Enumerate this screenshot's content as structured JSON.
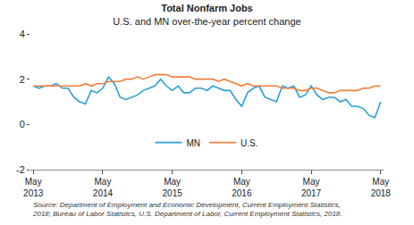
{
  "chart_data": {
    "type": "line",
    "title": "Total Nonfarm Jobs",
    "subtitle": "U.S. and MN over-the-year percent change",
    "source": [
      "Source: Department of Employment and Economic Development, Current Employment Statistics,",
      "2018; Bureau of Labor Statistics, U.S. Department of Labor, Current Employment Statistics, 2018."
    ],
    "categories": [
      "May 2013",
      null,
      null,
      null,
      null,
      null,
      null,
      null,
      null,
      null,
      null,
      null,
      "May 2014",
      null,
      null,
      null,
      null,
      null,
      null,
      null,
      null,
      null,
      null,
      null,
      "May 2015",
      null,
      null,
      null,
      null,
      null,
      null,
      null,
      null,
      null,
      null,
      null,
      "May 2016",
      null,
      null,
      null,
      null,
      null,
      null,
      null,
      null,
      null,
      null,
      null,
      "May 2017",
      null,
      null,
      null,
      null,
      null,
      null,
      null,
      null,
      null,
      null,
      null,
      "May 2018"
    ],
    "series": [
      {
        "name": "MN",
        "color": "#2a9fd6",
        "values": [
          1.7,
          1.6,
          1.7,
          1.7,
          1.8,
          1.6,
          1.6,
          1.2,
          1.0,
          0.9,
          1.5,
          1.4,
          1.6,
          2.1,
          1.8,
          1.2,
          1.1,
          1.2,
          1.3,
          1.5,
          1.6,
          1.7,
          2.0,
          1.7,
          1.5,
          1.7,
          1.4,
          1.4,
          1.6,
          1.6,
          1.5,
          1.7,
          1.6,
          1.5,
          1.5,
          1.1,
          0.8,
          1.4,
          1.6,
          1.7,
          1.2,
          1.1,
          1.0,
          1.7,
          1.6,
          1.7,
          1.2,
          1.3,
          1.7,
          1.3,
          1.1,
          1.2,
          1.2,
          1.0,
          1.1,
          0.8,
          0.8,
          0.7,
          0.4,
          0.3,
          1.0
        ]
      },
      {
        "name": "U.S.",
        "color": "#f07f3c",
        "values": [
          1.7,
          1.7,
          1.7,
          1.7,
          1.7,
          1.7,
          1.7,
          1.7,
          1.7,
          1.8,
          1.7,
          1.8,
          1.8,
          1.9,
          1.9,
          1.9,
          2.0,
          2.0,
          2.1,
          2.0,
          2.1,
          2.2,
          2.2,
          2.2,
          2.1,
          2.1,
          2.1,
          2.1,
          2.0,
          2.0,
          2.0,
          2.0,
          1.9,
          2.0,
          1.9,
          1.8,
          1.7,
          1.8,
          1.7,
          1.7,
          1.7,
          1.7,
          1.7,
          1.6,
          1.6,
          1.6,
          1.5,
          1.5,
          1.6,
          1.6,
          1.5,
          1.4,
          1.4,
          1.5,
          1.5,
          1.5,
          1.5,
          1.6,
          1.6,
          1.7,
          1.7
        ]
      }
    ],
    "ylim": [
      -2,
      4
    ],
    "yticks": [
      -2,
      0,
      2,
      4
    ],
    "y2lim": [
      -2,
      4
    ],
    "y2ticks": [
      -2,
      0,
      2,
      4
    ],
    "grid": false,
    "legend": "lower center"
  }
}
